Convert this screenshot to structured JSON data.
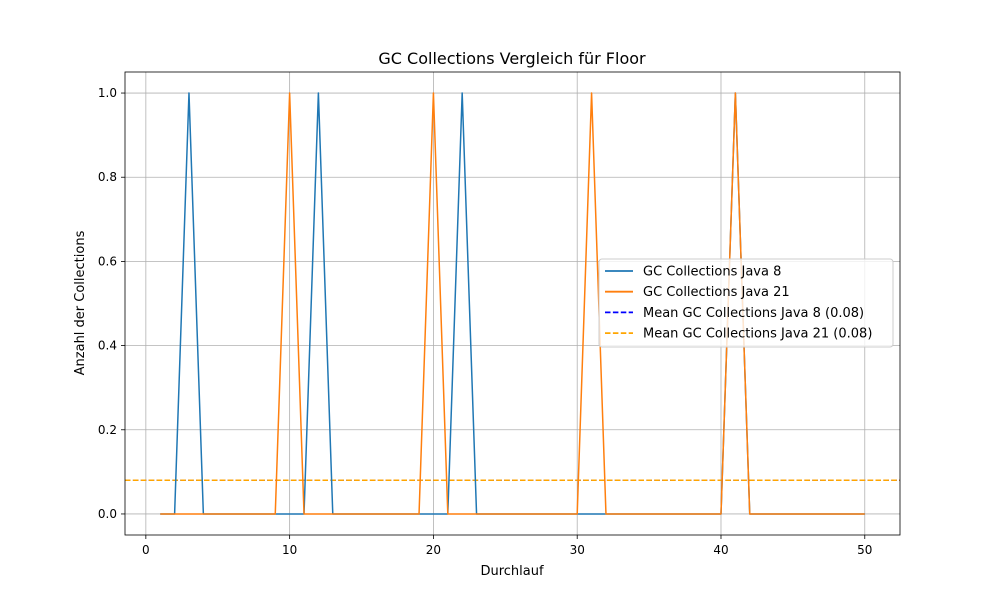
{
  "chart_data": {
    "type": "line",
    "title": "GC Collections Vergleich für Floor",
    "xlabel": "Durchlauf",
    "ylabel": "Anzahl der Collections",
    "xlim": [
      -1.45,
      52.45
    ],
    "ylim": [
      -0.05,
      1.05
    ],
    "xticks": [
      0,
      10,
      20,
      30,
      40,
      50
    ],
    "yticks": [
      0.0,
      0.2,
      0.4,
      0.6,
      0.8,
      1.0
    ],
    "xtick_labels": [
      "0",
      "10",
      "20",
      "30",
      "40",
      "50"
    ],
    "ytick_labels": [
      "0.0",
      "0.2",
      "0.4",
      "0.6",
      "0.8",
      "1.0"
    ],
    "grid": true,
    "legend_position": "center-right",
    "x_start": 1,
    "series": [
      {
        "name": "GC Collections Java 8",
        "color": "#1f77b4",
        "style": "solid",
        "values": [
          0,
          0,
          1,
          0,
          0,
          0,
          0,
          0,
          0,
          0,
          0,
          1,
          0,
          0,
          0,
          0,
          0,
          0,
          0,
          0,
          0,
          1,
          0,
          0,
          0,
          0,
          0,
          0,
          0,
          0,
          0,
          0,
          0,
          0,
          0,
          0,
          0,
          0,
          0,
          0,
          1,
          0,
          0,
          0,
          0,
          0,
          0,
          0,
          0,
          0
        ]
      },
      {
        "name": "GC Collections Java 21",
        "color": "#ff7f0e",
        "style": "solid",
        "values": [
          0,
          0,
          0,
          0,
          0,
          0,
          0,
          0,
          0,
          1,
          0,
          0,
          0,
          0,
          0,
          0,
          0,
          0,
          0,
          1,
          0,
          0,
          0,
          0,
          0,
          0,
          0,
          0,
          0,
          0,
          1,
          0,
          0,
          0,
          0,
          0,
          0,
          0,
          0,
          0,
          1,
          0,
          0,
          0,
          0,
          0,
          0,
          0,
          0,
          0
        ]
      }
    ],
    "mean_lines": [
      {
        "name": "Mean GC Collections Java 8 (0.08)",
        "value": 0.08,
        "color": "#0000ff",
        "style": "dashed"
      },
      {
        "name": "Mean GC Collections Java 21 (0.08)",
        "value": 0.08,
        "color": "#ffa500",
        "style": "dashed"
      }
    ]
  }
}
